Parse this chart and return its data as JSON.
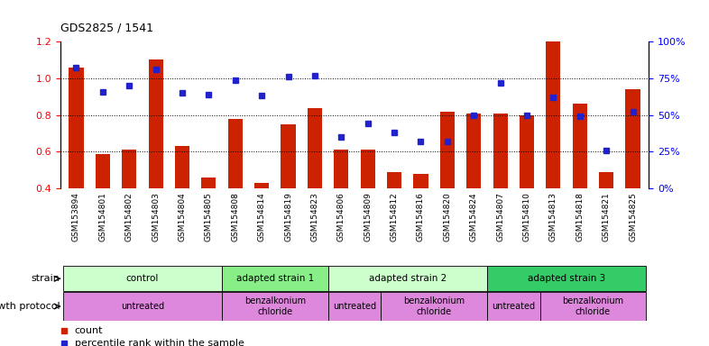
{
  "title": "GDS2825 / 1541",
  "samples": [
    "GSM153894",
    "GSM154801",
    "GSM154802",
    "GSM154803",
    "GSM154804",
    "GSM154805",
    "GSM154808",
    "GSM154814",
    "GSM154819",
    "GSM154823",
    "GSM154806",
    "GSM154809",
    "GSM154812",
    "GSM154816",
    "GSM154820",
    "GSM154824",
    "GSM154807",
    "GSM154810",
    "GSM154813",
    "GSM154818",
    "GSM154821",
    "GSM154825"
  ],
  "counts": [
    1.06,
    0.59,
    0.61,
    1.1,
    0.63,
    0.46,
    0.78,
    0.43,
    0.75,
    0.84,
    0.61,
    0.61,
    0.49,
    0.48,
    0.82,
    0.81,
    0.81,
    0.8,
    1.2,
    0.86,
    0.49,
    0.94
  ],
  "percentile_ranks": [
    82,
    66,
    70,
    81,
    65,
    64,
    74,
    63,
    76,
    77,
    35,
    44,
    38,
    32,
    32,
    50,
    72,
    50,
    62,
    49,
    26,
    52
  ],
  "ylim_left": [
    0.4,
    1.2
  ],
  "ylim_right": [
    0,
    100
  ],
  "bar_color": "#cc2200",
  "dot_color": "#2222cc",
  "strains": [
    {
      "label": "control",
      "start": 0,
      "end": 5,
      "color": "#ccffcc"
    },
    {
      "label": "adapted strain 1",
      "start": 6,
      "end": 9,
      "color": "#88ee88"
    },
    {
      "label": "adapted strain 2",
      "start": 10,
      "end": 15,
      "color": "#ccffcc"
    },
    {
      "label": "adapted strain 3",
      "start": 16,
      "end": 21,
      "color": "#33cc66"
    }
  ],
  "growth_protocols": [
    {
      "label": "untreated",
      "start": 0,
      "end": 5
    },
    {
      "label": "benzalkonium\nchloride",
      "start": 6,
      "end": 9
    },
    {
      "label": "untreated",
      "start": 10,
      "end": 11
    },
    {
      "label": "benzalkonium\nchloride",
      "start": 12,
      "end": 15
    },
    {
      "label": "untreated",
      "start": 16,
      "end": 17
    },
    {
      "label": "benzalkonium\nchloride",
      "start": 18,
      "end": 21
    }
  ],
  "hgrid_values": [
    0.6,
    0.8,
    1.0
  ],
  "left_yticks": [
    0.4,
    0.6,
    0.8,
    1.0,
    1.2
  ],
  "right_yticks": [
    0,
    25,
    50,
    75,
    100
  ],
  "right_yticklabels": [
    "0%",
    "25%",
    "50%",
    "75%",
    "100%"
  ]
}
